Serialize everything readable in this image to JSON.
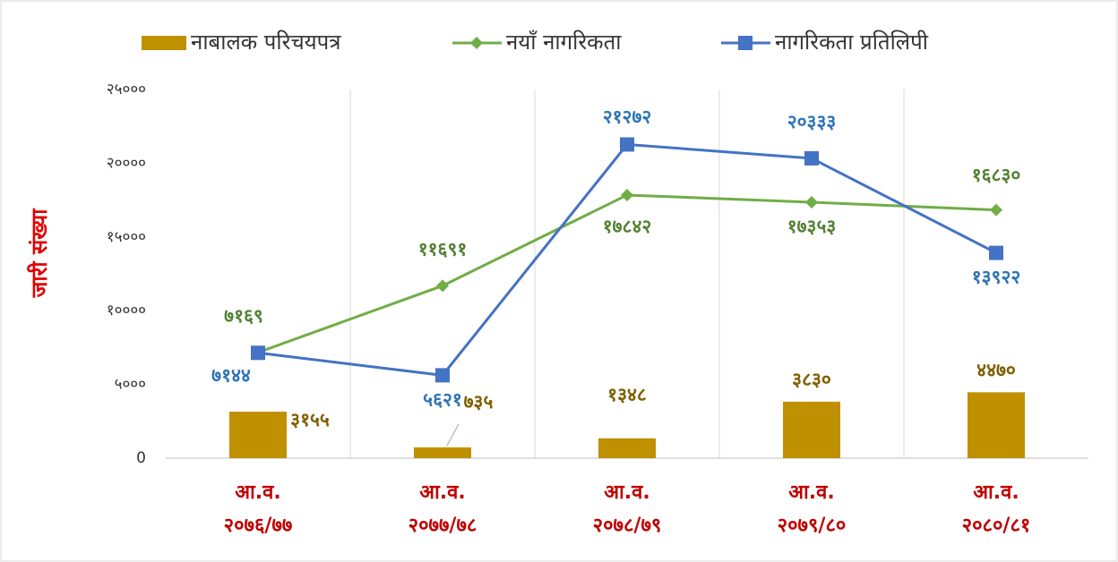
{
  "chart_data": {
    "type": "bar-line",
    "y_label": "जारी संख्या",
    "categories": [
      [
        "आ.व.",
        "२०७६/७७"
      ],
      [
        "आ.व.",
        "२०७७/७८"
      ],
      [
        "आ.व.",
        "२०७८/७९"
      ],
      [
        "आ.व.",
        "२०७९/८०"
      ],
      [
        "आ.व.",
        "२०८०/८१"
      ]
    ],
    "series": [
      {
        "name": "नाबालक परिचयपत्र",
        "type": "bar",
        "color": "#bf9000",
        "label_color": "#7f6000",
        "values": [
          3155,
          735,
          1348,
          3830,
          4470
        ],
        "value_labels": [
          "३१५५",
          "७३५",
          "१३४८",
          "३८३०",
          "४४७०"
        ]
      },
      {
        "name": "नयाँ नागरिकता",
        "type": "line",
        "color": "#70ad47",
        "label_color": "#548235",
        "values": [
          7169,
          11691,
          17842,
          17353,
          16830
        ],
        "value_labels": [
          "७१६९",
          "११६९१",
          "१७८४२",
          "१७३५३",
          "१६८३०"
        ]
      },
      {
        "name": "नागरिकता प्रतिलिपी",
        "type": "line",
        "color": "#4472c4",
        "label_color": "#2e75b6",
        "values": [
          7144,
          5621,
          21272,
          20333,
          13922
        ],
        "value_labels": [
          "७१४४",
          "५६२१",
          "२१२७२",
          "२०३३३",
          "१३९२२"
        ]
      }
    ],
    "ylim": [
      0,
      25000
    ],
    "yticks": [
      0,
      {
        "value": 5000,
        "label": "५०००"
      },
      {
        "value": 10000,
        "label": "१००००"
      },
      {
        "value": 15000,
        "label": "१५०००"
      },
      {
        "value": 20000,
        "label": "२००००"
      },
      {
        "value": 25000,
        "label": "२५०००"
      }
    ],
    "grid": true
  }
}
